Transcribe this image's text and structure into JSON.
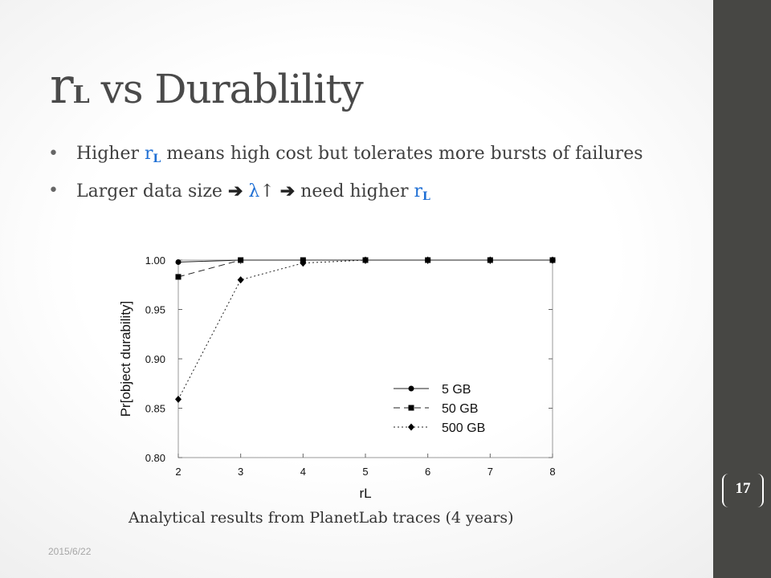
{
  "slide": {
    "title_symbol": "r",
    "title_subscript": "L",
    "title_rest": " vs Durablility",
    "bullets": [
      {
        "pre": "Higher ",
        "sym": "r",
        "sub": "L",
        "post": " means high cost but tolerates more bursts of failures"
      },
      {
        "pre": "Larger data size ",
        "arrow1": "➔",
        "lambda": "λ",
        "uparrow": "↑",
        "arrow2": "➔",
        "mid": " need higher ",
        "sym": "r",
        "sub": "L"
      }
    ],
    "bullet_char": "•",
    "caption": "Analytical results from PlanetLab traces (4 years)",
    "date": "2015/6/22",
    "page_number": "17"
  },
  "colors": {
    "accent_blue": "#1f6fd4",
    "sidebar": "#474744",
    "title": "#4a4a4a"
  },
  "chart_data": {
    "type": "line",
    "xlabel": "rL",
    "ylabel": "Pr[object durability]",
    "x": [
      2,
      3,
      4,
      5,
      6,
      7,
      8
    ],
    "xlim": [
      2,
      8
    ],
    "ylim": [
      0.8,
      1.0
    ],
    "x_ticks": [
      "2",
      "3",
      "4",
      "5",
      "6",
      "7",
      "8"
    ],
    "y_ticks": [
      "0.80",
      "0.85",
      "0.90",
      "0.95",
      "1.00"
    ],
    "y_tick_values": [
      0.8,
      0.85,
      0.9,
      0.95,
      1.0
    ],
    "legend_position": "bottom-right",
    "series": [
      {
        "name": "5 GB",
        "marker": "circle",
        "dash": "solid",
        "values": [
          0.998,
          1.0,
          1.0,
          1.0,
          1.0,
          1.0,
          1.0
        ]
      },
      {
        "name": "50 GB",
        "marker": "square",
        "dash": "dashed",
        "values": [
          0.983,
          1.0,
          1.0,
          1.0,
          1.0,
          1.0,
          1.0
        ]
      },
      {
        "name": "500 GB",
        "marker": "diamond",
        "dash": "dotted",
        "values": [
          0.859,
          0.98,
          0.997,
          1.0,
          1.0,
          1.0,
          1.0
        ]
      }
    ]
  }
}
